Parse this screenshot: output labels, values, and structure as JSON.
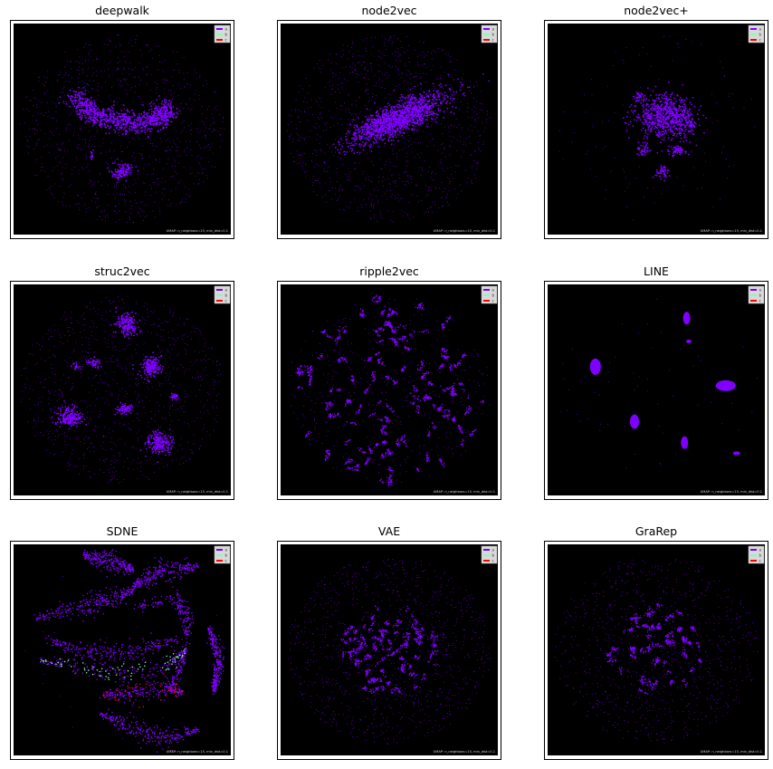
{
  "colors": {
    "background": "#000000",
    "point": "#8000ff",
    "class_1": "#8000ff",
    "class_2": "#80ffb4",
    "class_3": "#ff0000",
    "legend_bg": "#d9d9d9"
  },
  "chart_data": [
    {
      "type": "scatter",
      "title": "deepwalk",
      "legend": [
        "a",
        "b",
        "c"
      ],
      "annotation": "UMAP: n_neighbors=15, min_dist=0.1",
      "legend_position": "top-right",
      "grid": false
    },
    {
      "type": "scatter",
      "title": "node2vec",
      "legend": [
        "a",
        "b",
        "c"
      ],
      "annotation": "UMAP: n_neighbors=15, min_dist=0.1",
      "legend_position": "top-right",
      "grid": false
    },
    {
      "type": "scatter",
      "title": "node2vec+",
      "legend": [
        "a",
        "b",
        "c"
      ],
      "annotation": "UMAP: n_neighbors=15, min_dist=0.1",
      "legend_position": "top-right",
      "grid": false
    },
    {
      "type": "scatter",
      "title": "struc2vec",
      "legend": [
        "a",
        "b",
        "c"
      ],
      "annotation": "UMAP: n_neighbors=15, min_dist=0.1",
      "legend_position": "top-right",
      "grid": false
    },
    {
      "type": "scatter",
      "title": "ripple2vec",
      "legend": [
        "a",
        "b",
        "c"
      ],
      "annotation": "UMAP: n_neighbors=15, min_dist=0.1",
      "legend_position": "top-right",
      "grid": false
    },
    {
      "type": "scatter",
      "title": "LINE",
      "legend": [
        "a",
        "b",
        "c"
      ],
      "annotation": "UMAP: n_neighbors=15, min_dist=0.1",
      "legend_position": "top-right",
      "grid": false
    },
    {
      "type": "scatter",
      "title": "SDNE",
      "legend": [
        "a",
        "b",
        "c"
      ],
      "annotation": "UMAP: n_neighbors=15, min_dist=0.1",
      "legend_position": "top-right",
      "grid": false
    },
    {
      "type": "scatter",
      "title": "VAE",
      "legend": [
        "a",
        "b",
        "c"
      ],
      "annotation": "UMAP: n_neighbors=15, min_dist=0.1",
      "legend_position": "top-right",
      "grid": false
    },
    {
      "type": "scatter",
      "title": "GraRep",
      "legend": [
        "a",
        "b",
        "c"
      ],
      "annotation": "UMAP: n_neighbors=15, min_dist=0.1",
      "legend_position": "top-right",
      "grid": false
    }
  ]
}
